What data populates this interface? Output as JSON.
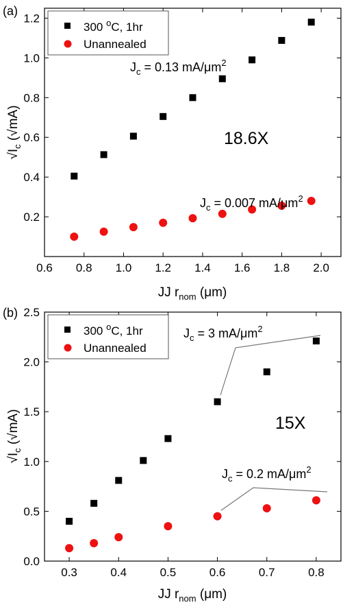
{
  "chart_data": [
    {
      "type": "scatter",
      "panel_label": "(a)",
      "xlabel": {
        "main": "JJ r",
        "sub": "nom",
        "unit": "(μm)"
      },
      "ylabel": {
        "root": "√I",
        "sub": "c",
        "unit": "(√mA)"
      },
      "xlim": [
        0.6,
        2.1
      ],
      "ylim": [
        0,
        1.25
      ],
      "xticks": [
        "0.6",
        "0.8",
        "1.0",
        "1.2",
        "1.4",
        "1.6",
        "1.8",
        "2.0"
      ],
      "yticks": [
        "0.2",
        "0.4",
        "0.6",
        "0.8",
        "1.0",
        "1.2"
      ],
      "series": [
        {
          "name": "300 ºC, 1hr",
          "name_main": "300 ",
          "name_sup": "o",
          "name_rest": "C, 1hr",
          "marker": "square",
          "color": "#000000",
          "x": [
            0.75,
            0.9,
            1.05,
            1.2,
            1.35,
            1.5,
            1.65,
            1.8,
            1.95
          ],
          "y": [
            0.405,
            0.513,
            0.606,
            0.705,
            0.8,
            0.895,
            0.99,
            1.088,
            1.18
          ]
        },
        {
          "name": "Unannealed",
          "marker": "circle",
          "color": "#ee1111",
          "x": [
            0.75,
            0.9,
            1.05,
            1.2,
            1.35,
            1.5,
            1.65,
            1.8,
            1.95
          ],
          "y": [
            0.1,
            0.125,
            0.148,
            0.17,
            0.193,
            0.215,
            0.237,
            0.256,
            0.28
          ]
        }
      ],
      "annotations": {
        "jc_annealed": {
          "pre": "J",
          "sub": "c",
          "text": " = 0.13 mA/μm",
          "sup": "2"
        },
        "jc_unannealed": {
          "pre": "J",
          "sub": "c",
          "text": " = 0.007 mA/μm",
          "sup": "2"
        },
        "ratio": "18.6X"
      }
    },
    {
      "type": "scatter",
      "panel_label": "(b)",
      "xlabel": {
        "main": "JJ r",
        "sub": "nom",
        "unit": "(μm)"
      },
      "ylabel": {
        "root": "√I",
        "sub": "c",
        "unit": "(√mA)"
      },
      "xlim": [
        0.25,
        0.85
      ],
      "ylim": [
        0,
        2.5
      ],
      "xticks": [
        "0.3",
        "0.4",
        "0.5",
        "0.6",
        "0.7",
        "0.8"
      ],
      "yticks": [
        "0.0",
        "0.5",
        "1.0",
        "1.5",
        "2.0",
        "2.5"
      ],
      "series": [
        {
          "name": "300 ºC, 1hr",
          "name_main": "300 ",
          "name_sup": "o",
          "name_rest": "C, 1hr",
          "marker": "square",
          "color": "#000000",
          "x": [
            0.3,
            0.35,
            0.4,
            0.45,
            0.5,
            0.6,
            0.7,
            0.8
          ],
          "y": [
            0.4,
            0.58,
            0.81,
            1.01,
            1.23,
            1.6,
            1.9,
            2.21
          ]
        },
        {
          "name": "Unannealed",
          "marker": "circle",
          "color": "#ee1111",
          "x": [
            0.3,
            0.35,
            0.4,
            0.5,
            0.6,
            0.7,
            0.8
          ],
          "y": [
            0.13,
            0.18,
            0.24,
            0.35,
            0.45,
            0.53,
            0.61
          ]
        }
      ],
      "annotations": {
        "jc_annealed": {
          "pre": "J",
          "sub": "c",
          "text": " = 3 mA/μm",
          "sup": "2"
        },
        "jc_unannealed": {
          "pre": "J",
          "sub": "c",
          "text": " = 0.2 mA/μm",
          "sup": "2"
        },
        "ratio": "15X"
      }
    }
  ]
}
